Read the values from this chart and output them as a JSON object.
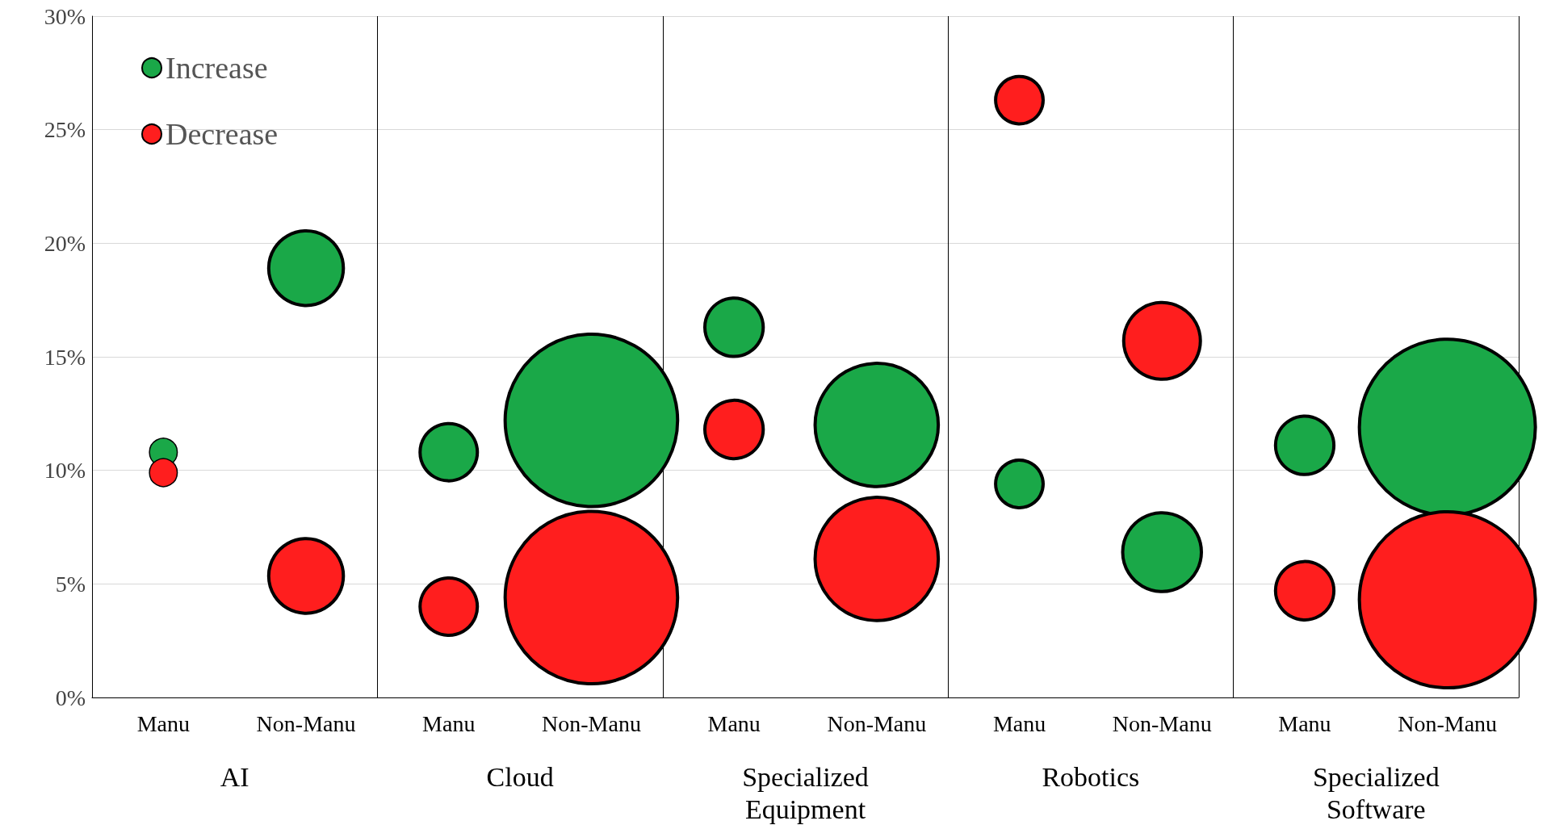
{
  "chart_data": {
    "type": "bubble",
    "categories": [
      "Manu",
      "Non-Manu",
      "Manu",
      "Non-Manu",
      "Manu",
      "Non-Manu",
      "Manu",
      "Non-Manu",
      "Manu",
      "Non-Manu"
    ],
    "series": [
      {
        "name": "Increase",
        "color": "#1aa848",
        "values": [
          10.8,
          18.9,
          10.8,
          12.2,
          16.3,
          12.0,
          9.4,
          6.4,
          11.1,
          11.9
        ],
        "sizes": [
          0.025,
          0.18,
          0.106,
          0.96,
          0.11,
          0.49,
          0.073,
          0.2,
          0.11,
          1
        ]
      },
      {
        "name": "Decrease",
        "color": "#ff1e1e",
        "values": [
          9.9,
          5.35,
          4.0,
          4.4,
          11.8,
          6.1,
          26.3,
          15.7,
          4.7,
          4.3
        ],
        "sizes": [
          0.025,
          0.18,
          0.106,
          0.96,
          0.11,
          0.49,
          0.073,
          0.19,
          0.11,
          1
        ]
      }
    ],
    "annotations": [
      "AI",
      "Cloud",
      "Specialized\nEquipment",
      "Robotics",
      "Specialized\nSoftware"
    ],
    "ylim": [
      0,
      30
    ],
    "yticks": [
      {
        "value": 0,
        "label": "0%"
      },
      {
        "value": 5,
        "label": "5%"
      },
      {
        "value": 10,
        "label": "10%"
      },
      {
        "value": 15,
        "label": "15%"
      },
      {
        "value": 20,
        "label": "20%"
      },
      {
        "value": 25,
        "label": "25%"
      },
      {
        "value": 30,
        "label": "30%"
      }
    ],
    "grid": "y",
    "legend": "top left",
    "marker": "circle"
  }
}
